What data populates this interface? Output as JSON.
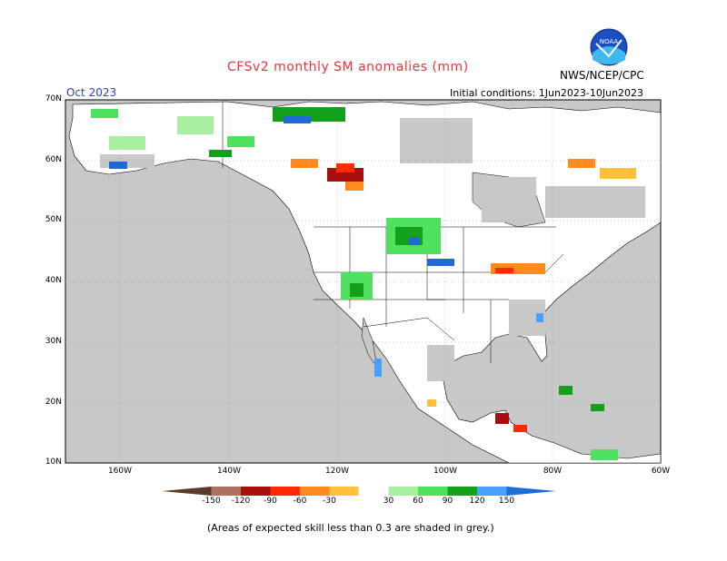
{
  "header": {
    "title": "CFSv2 monthly SM anomalies (mm)",
    "month": "Oct 2023",
    "agency": "NWS/NCEP/CPC",
    "initial_conditions": "Initial conditions: 1Jun2023-10Jun2023",
    "logo_text": "NOAA"
  },
  "map": {
    "lat_labels": [
      "70N",
      "60N",
      "50N",
      "40N",
      "30N",
      "20N",
      "10N"
    ],
    "lon_labels": [
      "160W",
      "140W",
      "120W",
      "100W",
      "80W",
      "60W"
    ]
  },
  "colorbar": {
    "labels": [
      "-150",
      "-120",
      "-90",
      "-60",
      "-30",
      "30",
      "60",
      "90",
      "120",
      "150"
    ],
    "colors": [
      "#5a3a2a",
      "#b07060",
      "#a50f0f",
      "#ff2a00",
      "#ff8a1e",
      "#ffc040",
      "#ffffff",
      "#a8f0a0",
      "#50e060",
      "#14a01a",
      "#4aa0ff",
      "#1e6ad8"
    ]
  },
  "footnote": "(Areas of expected skill less than 0.3 are shaded in grey.)",
  "colors": {
    "ocean": "#c8c8c8",
    "land": "#ffffff",
    "skill_grey": "#c8c8c8"
  }
}
